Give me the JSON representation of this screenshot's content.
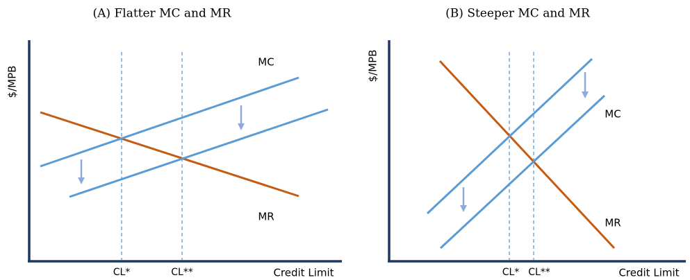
{
  "panels": [
    {
      "title": "(A) Flatter MC and MR",
      "y_axis_label": "$/MPB",
      "x_axis_label": "Credit Limit",
      "mc_label": "MC",
      "mr_label": "MR",
      "cl_star": "CL*",
      "cl_star_star": "CL**"
    },
    {
      "title": "(B) Steeper MC and MR",
      "y_axis_label": "$/MPB",
      "x_axis_label": "Credit Limit",
      "mc_label": "MC",
      "mr_label": "MR",
      "cl_star": "CL*",
      "cl_star_star": "CL**"
    }
  ]
}
